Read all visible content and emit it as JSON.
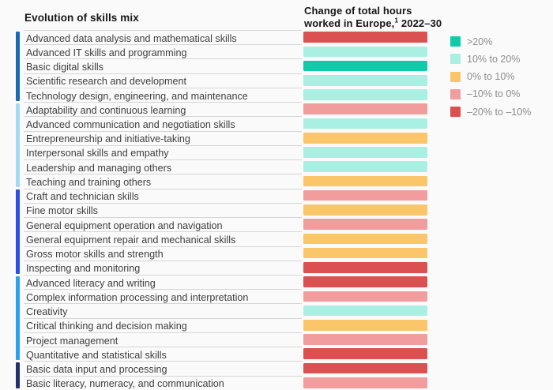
{
  "chart_data": {
    "type": "heatmap",
    "left_header": "Evolution of skills mix",
    "right_header": {
      "line1": "Change of total hours",
      "line2_pre": "worked in Europe,",
      "footnote_sup": "1",
      "line2_post": " 2022–30"
    },
    "legend": {
      "position": "right",
      "items": [
        {
          "key": "gt20",
          "label": ">20%",
          "color": "#12C9A9"
        },
        {
          "key": "p10to20",
          "label": "10% to 20%",
          "color": "#A9F0E2"
        },
        {
          "key": "p0to10",
          "label": "0% to 10%",
          "color": "#FAC669"
        },
        {
          "key": "n10to0",
          "label": "–10% to 0%",
          "color": "#F29D9D"
        },
        {
          "key": "n20to10",
          "label": "–20% to –10%",
          "color": "#DB5050"
        }
      ]
    },
    "groups": [
      {
        "color": "#1C68B3",
        "start": 0,
        "count": 5
      },
      {
        "color": "#A5D8F5",
        "start": 5,
        "count": 6
      },
      {
        "color": "#2B4FDE",
        "start": 11,
        "count": 6
      },
      {
        "color": "#2AA3EA",
        "start": 17,
        "count": 6
      },
      {
        "color": "#22306E",
        "start": 23,
        "count": 2
      }
    ],
    "rows": [
      {
        "label": "Advanced data analysis and mathematical skills",
        "value": "–20% to –10%",
        "key": "n20to10"
      },
      {
        "label": "Advanced IT skills and programming",
        "value": "10% to 20%",
        "key": "p10to20"
      },
      {
        "label": "Basic digital skills",
        "value": ">20%",
        "key": "gt20"
      },
      {
        "label": "Scientific research and development",
        "value": "10% to 20%",
        "key": "p10to20"
      },
      {
        "label": "Technology design, engineering, and maintenance",
        "value": "10% to 20%",
        "key": "p10to20"
      },
      {
        "label": "Adaptability and continuous learning",
        "value": "–10% to 0%",
        "key": "n10to0"
      },
      {
        "label": "Advanced communication and negotiation skills",
        "value": "10% to 20%",
        "key": "p10to20"
      },
      {
        "label": "Entrepreneurship and initiative-taking",
        "value": "0% to 10%",
        "key": "p0to10"
      },
      {
        "label": "Interpersonal skills and empathy",
        "value": "10% to 20%",
        "key": "p10to20"
      },
      {
        "label": "Leadership and managing others",
        "value": "10% to 20%",
        "key": "p10to20"
      },
      {
        "label": "Teaching and training others",
        "value": "0% to 10%",
        "key": "p0to10"
      },
      {
        "label": "Craft and technician skills",
        "value": "–10% to 0%",
        "key": "n10to0"
      },
      {
        "label": "Fine motor skills",
        "value": "0% to 10%",
        "key": "p0to10"
      },
      {
        "label": "General equipment operation and navigation",
        "value": "–10% to 0%",
        "key": "n10to0"
      },
      {
        "label": "General equipment repair and mechanical skills",
        "value": "0% to 10%",
        "key": "p0to10"
      },
      {
        "label": "Gross motor skills and strength",
        "value": "0% to 10%",
        "key": "p0to10"
      },
      {
        "label": "Inspecting and monitoring",
        "value": "–20% to –10%",
        "key": "n20to10"
      },
      {
        "label": "Advanced literacy and writing",
        "value": "–20% to –10%",
        "key": "n20to10"
      },
      {
        "label": "Complex information processing and interpretation",
        "value": "–10% to 0%",
        "key": "n10to0"
      },
      {
        "label": "Creativity",
        "value": "10% to 20%",
        "key": "p10to20"
      },
      {
        "label": "Critical thinking and decision making",
        "value": "0% to 10%",
        "key": "p0to10"
      },
      {
        "label": "Project management",
        "value": "–10% to 0%",
        "key": "n10to0"
      },
      {
        "label": "Quantitative and statistical skills",
        "value": "–20% to –10%",
        "key": "n20to10"
      },
      {
        "label": "Basic data input and processing",
        "value": "–20% to –10%",
        "key": "n20to10"
      },
      {
        "label": "Basic literacy, numeracy, and communication",
        "value": "–10% to 0%",
        "key": "n10to0"
      }
    ]
  }
}
